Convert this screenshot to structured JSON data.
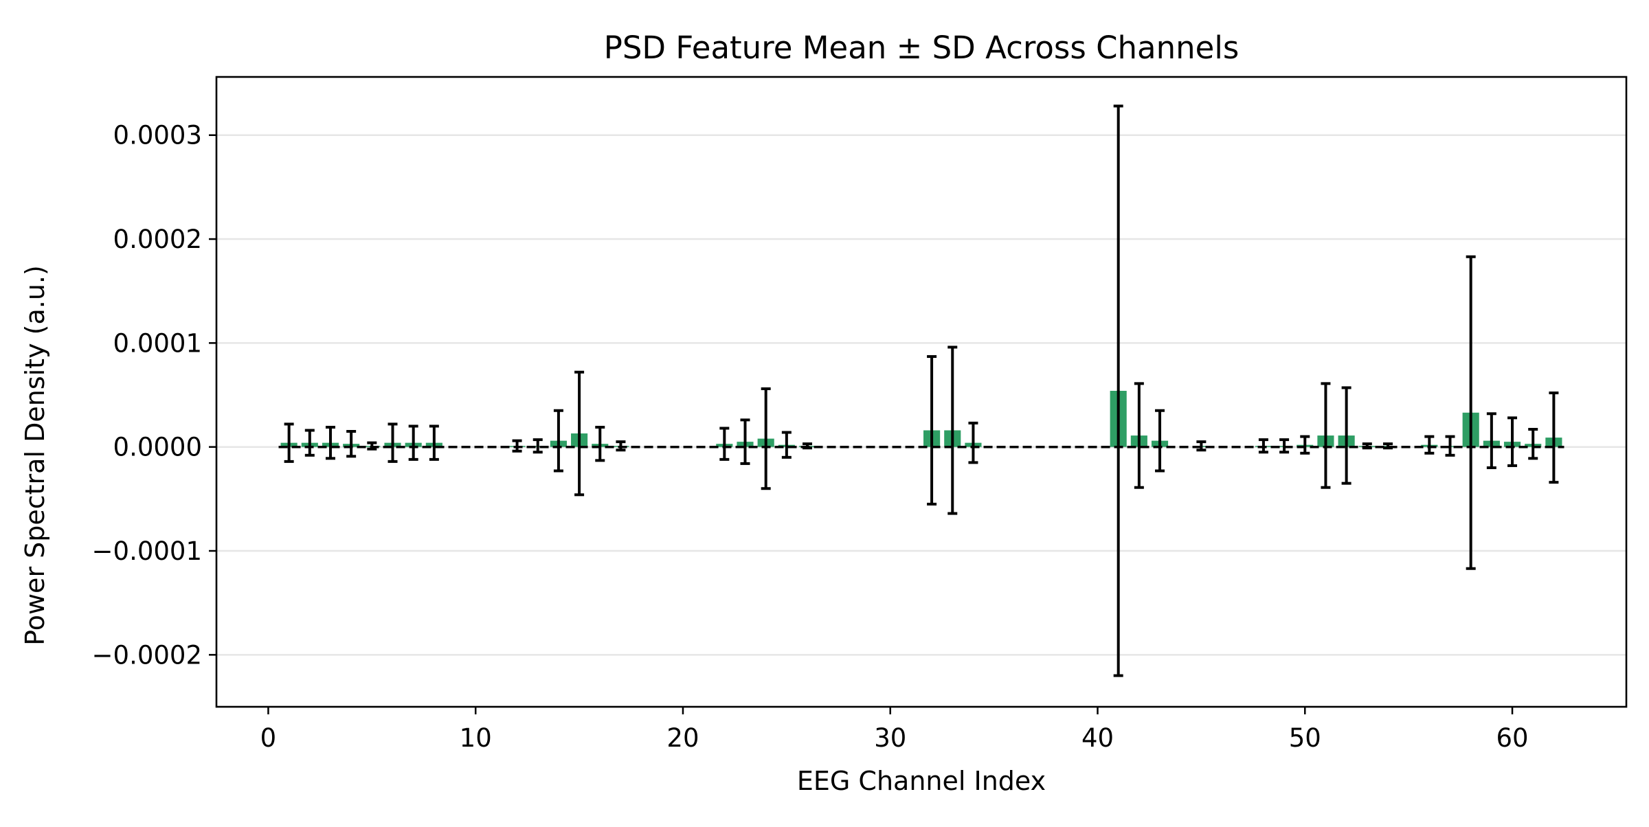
{
  "chart_data": {
    "type": "bar",
    "title": "PSD Feature Mean ± SD Across Channels",
    "xlabel": "EEG Channel Index",
    "ylabel": "Power Spectral Density (a.u.)",
    "xlim": [
      -2.5,
      65.5
    ],
    "ylim": [
      -0.00025,
      0.000356
    ],
    "x_ticks": [
      0,
      10,
      20,
      30,
      40,
      50,
      60
    ],
    "x_tick_labels": [
      "0",
      "10",
      "20",
      "30",
      "40",
      "50",
      "60"
    ],
    "y_ticks": [
      -0.0002,
      -0.0001,
      0,
      0.0001,
      0.0002,
      0.0003
    ],
    "y_tick_labels": [
      "−0.0002",
      "−0.0001",
      "0.0000",
      "0.0001",
      "0.0002",
      "0.0003"
    ],
    "grid": "y",
    "reference_line": {
      "y": 0,
      "style": "dashed"
    },
    "colors": {
      "bar": "#2e9e64",
      "error_bar": "#000000",
      "grid": "#e6e6e6"
    },
    "points": [
      {
        "channel": 1,
        "mean": 4e-06,
        "sd": 1.8e-05
      },
      {
        "channel": 2,
        "mean": 4e-06,
        "sd": 1.2e-05
      },
      {
        "channel": 3,
        "mean": 4e-06,
        "sd": 1.5e-05
      },
      {
        "channel": 4,
        "mean": 3e-06,
        "sd": 1.2e-05
      },
      {
        "channel": 5,
        "mean": 1e-06,
        "sd": 3e-06
      },
      {
        "channel": 6,
        "mean": 4e-06,
        "sd": 1.8e-05
      },
      {
        "channel": 7,
        "mean": 4e-06,
        "sd": 1.6e-05
      },
      {
        "channel": 8,
        "mean": 4e-06,
        "sd": 1.6e-05
      },
      {
        "channel": 12,
        "mean": 1e-06,
        "sd": 5e-06
      },
      {
        "channel": 13,
        "mean": 1e-06,
        "sd": 6e-06
      },
      {
        "channel": 14,
        "mean": 6e-06,
        "sd": 2.9e-05
      },
      {
        "channel": 15,
        "mean": 1.3e-05,
        "sd": 5.9e-05
      },
      {
        "channel": 16,
        "mean": 3e-06,
        "sd": 1.6e-05
      },
      {
        "channel": 17,
        "mean": 1e-06,
        "sd": 4e-06
      },
      {
        "channel": 22,
        "mean": 3e-06,
        "sd": 1.5e-05
      },
      {
        "channel": 23,
        "mean": 5e-06,
        "sd": 2.1e-05
      },
      {
        "channel": 24,
        "mean": 8e-06,
        "sd": 4.8e-05
      },
      {
        "channel": 25,
        "mean": 2e-06,
        "sd": 1.2e-05
      },
      {
        "channel": 26,
        "mean": 1e-06,
        "sd": 2e-06
      },
      {
        "channel": 32,
        "mean": 1.6e-05,
        "sd": 7.1e-05
      },
      {
        "channel": 33,
        "mean": 1.6e-05,
        "sd": 8e-05
      },
      {
        "channel": 34,
        "mean": 4e-06,
        "sd": 1.9e-05
      },
      {
        "channel": 41,
        "mean": 5.4e-05,
        "sd": 0.000274
      },
      {
        "channel": 42,
        "mean": 1.1e-05,
        "sd": 5e-05
      },
      {
        "channel": 43,
        "mean": 6e-06,
        "sd": 2.9e-05
      },
      {
        "channel": 45,
        "mean": 1e-06,
        "sd": 4e-06
      },
      {
        "channel": 48,
        "mean": 1e-06,
        "sd": 6e-06
      },
      {
        "channel": 49,
        "mean": 1e-06,
        "sd": 6e-06
      },
      {
        "channel": 50,
        "mean": 2e-06,
        "sd": 8e-06
      },
      {
        "channel": 51,
        "mean": 1.1e-05,
        "sd": 5e-05
      },
      {
        "channel": 52,
        "mean": 1.1e-05,
        "sd": 4.6e-05
      },
      {
        "channel": 53,
        "mean": 1e-06,
        "sd": 2e-06
      },
      {
        "channel": 54,
        "mean": 1e-06,
        "sd": 2e-06
      },
      {
        "channel": 56,
        "mean": 2e-06,
        "sd": 8e-06
      },
      {
        "channel": 57,
        "mean": 1e-06,
        "sd": 9e-06
      },
      {
        "channel": 58,
        "mean": 3.3e-05,
        "sd": 0.00015
      },
      {
        "channel": 59,
        "mean": 6e-06,
        "sd": 2.6e-05
      },
      {
        "channel": 60,
        "mean": 5e-06,
        "sd": 2.3e-05
      },
      {
        "channel": 61,
        "mean": 3e-06,
        "sd": 1.4e-05
      },
      {
        "channel": 62,
        "mean": 9e-06,
        "sd": 4.3e-05
      }
    ]
  }
}
